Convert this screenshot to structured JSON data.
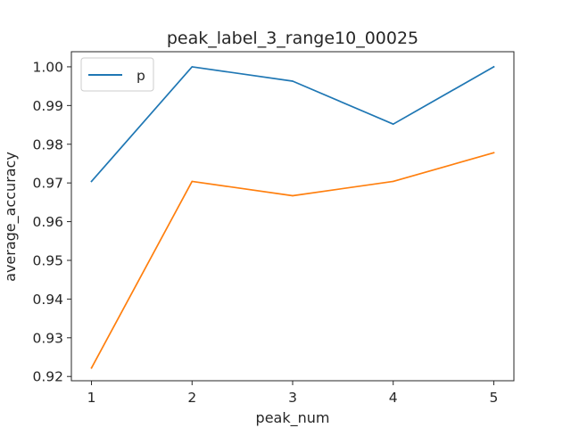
{
  "chart_data": {
    "type": "line",
    "title": "peak_label_3_range10_00025",
    "xlabel": "peak_num",
    "ylabel": "average_accuracy",
    "x": [
      1,
      2,
      3,
      4,
      5
    ],
    "xlim": [
      0.8,
      5.2
    ],
    "ylim": [
      0.9189,
      1.0039
    ],
    "x_ticks": [
      "1",
      "2",
      "3",
      "4",
      "5"
    ],
    "y_ticks": [
      "0.92",
      "0.93",
      "0.94",
      "0.95",
      "0.96",
      "0.97",
      "0.98",
      "0.99",
      "1.00"
    ],
    "grid": false,
    "legend_position": "top-left",
    "series": [
      {
        "name": "p",
        "color": "#1f77b4",
        "values": [
          0.9704,
          1.0,
          0.9963,
          0.9852,
          1.0
        ]
      },
      {
        "color": "#ff7f0e",
        "values": [
          0.9222,
          0.9704,
          0.9667,
          0.9704,
          0.9778
        ]
      }
    ]
  }
}
